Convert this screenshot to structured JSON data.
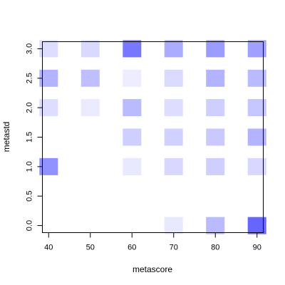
{
  "chart_data": {
    "type": "heatmap",
    "xlabel": "metascore",
    "ylabel": "metastd",
    "x_ticks": [
      40,
      50,
      60,
      70,
      80,
      90
    ],
    "x_tick_labels": [
      "40",
      "50",
      "60",
      "70",
      "80",
      "90"
    ],
    "y_ticks": [
      0.0,
      0.5,
      1.0,
      1.5,
      2.0,
      2.5,
      3.0
    ],
    "y_tick_labels": [
      "0.0",
      "0.5",
      "1.0",
      "1.5",
      "2.0",
      "2.5",
      "3.0"
    ],
    "xlim": [
      38.5,
      91.5
    ],
    "ylim": [
      -0.12,
      3.12
    ],
    "color_low": "#ffffff",
    "color_high": "#6666ff",
    "cells": [
      {
        "x": 40,
        "y": 3.0,
        "intensity": 0.22
      },
      {
        "x": 50,
        "y": 3.0,
        "intensity": 0.25
      },
      {
        "x": 60,
        "y": 3.0,
        "intensity": 0.88
      },
      {
        "x": 70,
        "y": 3.0,
        "intensity": 0.55
      },
      {
        "x": 80,
        "y": 3.0,
        "intensity": 0.65
      },
      {
        "x": 90,
        "y": 3.0,
        "intensity": 0.62
      },
      {
        "x": 40,
        "y": 2.5,
        "intensity": 0.5
      },
      {
        "x": 50,
        "y": 2.5,
        "intensity": 0.42
      },
      {
        "x": 60,
        "y": 2.5,
        "intensity": 0.12
      },
      {
        "x": 70,
        "y": 2.5,
        "intensity": 0.24
      },
      {
        "x": 80,
        "y": 2.5,
        "intensity": 0.5
      },
      {
        "x": 90,
        "y": 2.5,
        "intensity": 0.45
      },
      {
        "x": 40,
        "y": 2.0,
        "intensity": 0.22
      },
      {
        "x": 50,
        "y": 2.0,
        "intensity": 0.13
      },
      {
        "x": 60,
        "y": 2.0,
        "intensity": 0.45
      },
      {
        "x": 70,
        "y": 2.0,
        "intensity": 0.22
      },
      {
        "x": 80,
        "y": 2.0,
        "intensity": 0.32
      },
      {
        "x": 90,
        "y": 2.0,
        "intensity": 0.38
      },
      {
        "x": 60,
        "y": 1.5,
        "intensity": 0.32
      },
      {
        "x": 70,
        "y": 1.5,
        "intensity": 0.3
      },
      {
        "x": 80,
        "y": 1.5,
        "intensity": 0.35
      },
      {
        "x": 90,
        "y": 1.5,
        "intensity": 0.5
      },
      {
        "x": 40,
        "y": 1.0,
        "intensity": 0.72
      },
      {
        "x": 60,
        "y": 1.0,
        "intensity": 0.15
      },
      {
        "x": 70,
        "y": 1.0,
        "intensity": 0.26
      },
      {
        "x": 80,
        "y": 1.0,
        "intensity": 0.32
      },
      {
        "x": 90,
        "y": 1.0,
        "intensity": 0.26
      },
      {
        "x": 70,
        "y": 0.0,
        "intensity": 0.15
      },
      {
        "x": 80,
        "y": 0.0,
        "intensity": 0.45
      },
      {
        "x": 90,
        "y": 0.0,
        "intensity": 1.0
      }
    ]
  }
}
